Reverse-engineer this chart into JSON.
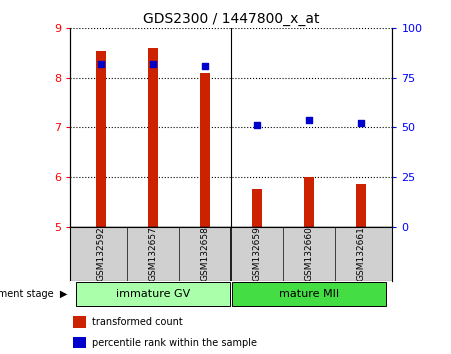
{
  "title": "GDS2300 / 1447800_x_at",
  "samples": [
    "GSM132592",
    "GSM132657",
    "GSM132658",
    "GSM132659",
    "GSM132660",
    "GSM132661"
  ],
  "bar_values": [
    8.55,
    8.6,
    8.1,
    5.75,
    6.0,
    5.85
  ],
  "bar_base": 5.0,
  "percentile_values": [
    82,
    82,
    81,
    51,
    54,
    52
  ],
  "groups": [
    {
      "label": "immature GV",
      "start": 0,
      "end": 2,
      "color": "#aaffaa"
    },
    {
      "label": "mature MII",
      "start": 3,
      "end": 5,
      "color": "#44dd44"
    }
  ],
  "ylim_left": [
    5,
    9
  ],
  "ylim_right": [
    0,
    100
  ],
  "yticks_left": [
    5,
    6,
    7,
    8,
    9
  ],
  "yticks_right": [
    0,
    25,
    50,
    75,
    100
  ],
  "bar_color": "#cc2200",
  "dot_color": "#0000cc",
  "sample_bg_color": "#d0d0d0",
  "plot_bg": "#ffffff",
  "legend_bar_label": "transformed count",
  "legend_dot_label": "percentile rank within the sample",
  "dev_stage_label": "development stage"
}
